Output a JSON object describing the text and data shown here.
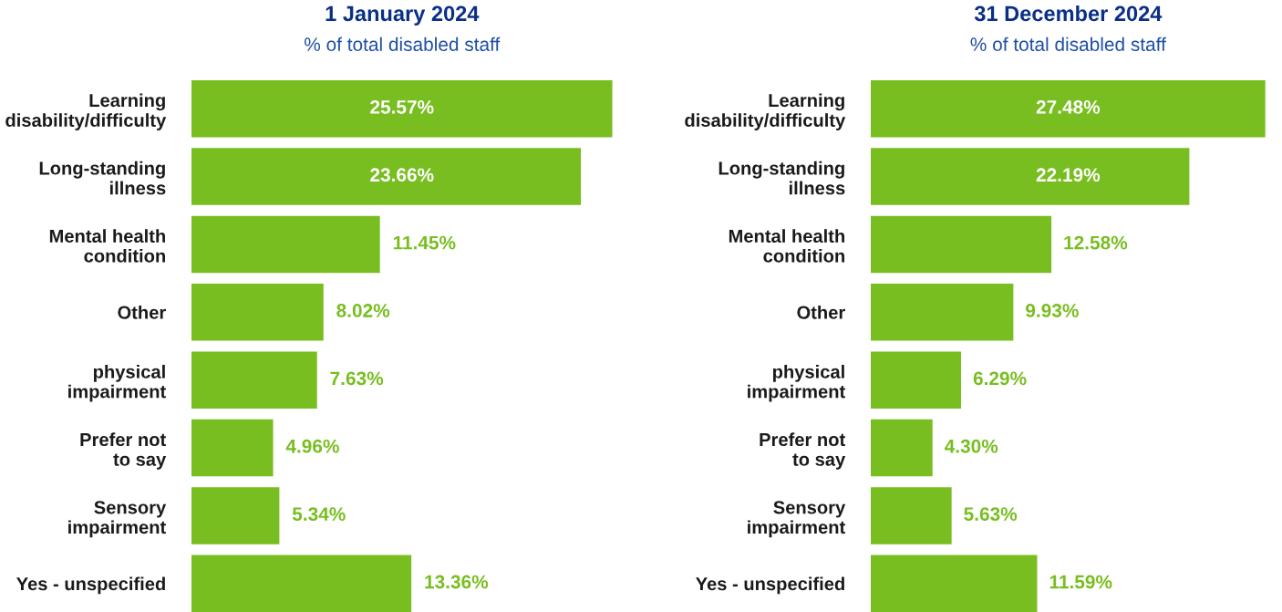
{
  "chart_data": [
    {
      "type": "bar",
      "orientation": "horizontal",
      "title": "1 January 2024",
      "subtitle": "% of total disabled staff",
      "categories": [
        "Learning\ndisability/difficulty",
        "Long-standing\nillness",
        "Mental health\ncondition",
        "Other",
        "physical\nimpairment",
        "Prefer not\nto say",
        "Sensory\nimpairment",
        "Yes - unspecified"
      ],
      "values": [
        25.57,
        23.66,
        11.45,
        8.02,
        7.63,
        4.96,
        5.34,
        13.36
      ],
      "value_labels": [
        "25.57%",
        "23.66%",
        "11.45%",
        "8.02%",
        "7.63%",
        "4.96%",
        "5.34%",
        "13.36%"
      ],
      "color": "#78be20",
      "grid": false,
      "legend": false
    },
    {
      "type": "bar",
      "orientation": "horizontal",
      "title": "31 December 2024",
      "subtitle": "% of total disabled staff",
      "categories": [
        "Learning\ndisability/difficulty",
        "Long-standing\nillness",
        "Mental health\ncondition",
        "Other",
        "physical\nimpairment",
        "Prefer not\nto say",
        "Sensory\nimpairment",
        "Yes - unspecified"
      ],
      "values": [
        27.48,
        22.19,
        12.58,
        9.93,
        6.29,
        4.3,
        5.63,
        11.59
      ],
      "value_labels": [
        "27.48%",
        "22.19%",
        "12.58%",
        "9.93%",
        "6.29%",
        "4.30%",
        "5.63%",
        "11.59%"
      ],
      "color": "#78be20",
      "grid": false,
      "legend": false
    }
  ]
}
